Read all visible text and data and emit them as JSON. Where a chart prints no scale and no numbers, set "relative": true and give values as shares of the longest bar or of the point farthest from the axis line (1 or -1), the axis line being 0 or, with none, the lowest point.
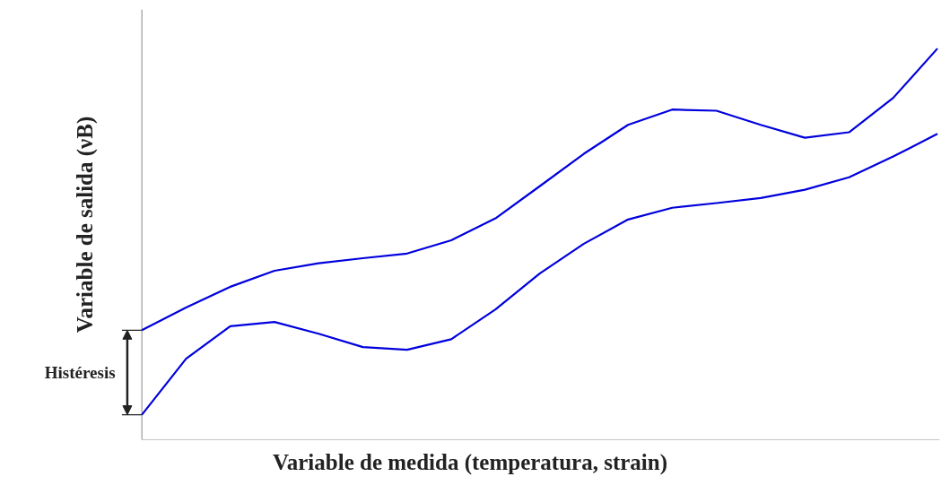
{
  "chart_data": {
    "type": "line",
    "relative": true,
    "xlabel": "Variable de medida (temperatura, strain)",
    "ylabel": "Variable de salida (νB)",
    "categories": [
      null,
      null,
      null,
      null,
      null,
      null,
      null,
      null,
      null,
      null,
      null,
      null,
      null,
      null,
      null,
      null,
      null,
      null,
      null
    ],
    "series": [
      {
        "color": "#0000dd",
        "values": [
          0.28,
          0.338,
          0.391,
          0.432,
          0.451,
          0.464,
          0.476,
          0.51,
          0.566,
          0.648,
          0.731,
          0.805,
          0.844,
          0.841,
          0.805,
          0.772,
          0.786,
          0.874,
          1.0
        ]
      },
      {
        "color": "#0000dd",
        "values": [
          0.064,
          0.207,
          0.29,
          0.301,
          0.271,
          0.237,
          0.23,
          0.257,
          0.333,
          0.425,
          0.501,
          0.563,
          0.593,
          0.605,
          0.618,
          0.639,
          0.671,
          0.724,
          0.782
        ]
      }
    ],
    "annotations": [
      "Histéresis"
    ],
    "grid": false,
    "line_style": "solid",
    "marker": "none"
  }
}
